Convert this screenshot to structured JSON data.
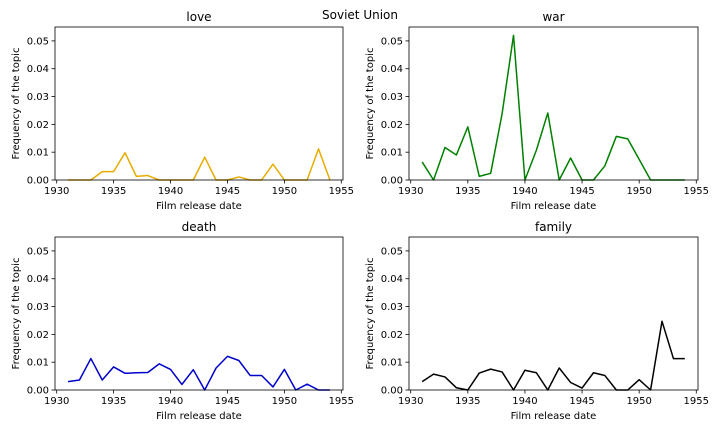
{
  "figure": {
    "suptitle": "Soviet Union"
  },
  "chart_data": [
    {
      "type": "line",
      "title": "love",
      "xlabel": "Film release date",
      "ylabel": "Frequency of the topic",
      "xlim": [
        1929.85,
        1955.15
      ],
      "ylim": [
        0,
        0.055
      ],
      "xticks": [
        1930,
        1935,
        1940,
        1945,
        1950,
        1955
      ],
      "yticks": [
        0.0,
        0.01,
        0.02,
        0.03,
        0.04,
        0.05
      ],
      "ytick_labels": [
        "0.00",
        "0.01",
        "0.02",
        "0.03",
        "0.04",
        "0.05"
      ],
      "grid": false,
      "color": "#e6ac00",
      "x": [
        1931,
        1932,
        1933,
        1934,
        1935,
        1936,
        1937,
        1938,
        1939,
        1940,
        1941,
        1942,
        1943,
        1944,
        1945,
        1946,
        1947,
        1948,
        1949,
        1950,
        1951,
        1952,
        1953,
        1954
      ],
      "y": [
        0,
        0,
        0,
        0.003,
        0.003,
        0.0098,
        0.0013,
        0.0016,
        0,
        0,
        0,
        0,
        0.0082,
        0,
        0,
        0.0011,
        0,
        0,
        0.0057,
        0,
        0,
        0,
        0.0112,
        0
      ]
    },
    {
      "type": "line",
      "title": "war",
      "xlabel": "Film release date",
      "ylabel": "Frequency of the topic",
      "xlim": [
        1929.85,
        1955.15
      ],
      "ylim": [
        0,
        0.055
      ],
      "xticks": [
        1930,
        1935,
        1940,
        1945,
        1950,
        1955
      ],
      "yticks": [
        0.0,
        0.01,
        0.02,
        0.03,
        0.04,
        0.05
      ],
      "ytick_labels": [
        "0.00",
        "0.01",
        "0.02",
        "0.03",
        "0.04",
        "0.05"
      ],
      "grid": false,
      "color": "#008000",
      "x": [
        1931,
        1932,
        1933,
        1934,
        1935,
        1936,
        1937,
        1938,
        1939,
        1940,
        1941,
        1942,
        1943,
        1944,
        1945,
        1946,
        1947,
        1948,
        1949,
        1950,
        1951,
        1952,
        1953,
        1954
      ],
      "y": [
        0.0065,
        0,
        0.0117,
        0.009,
        0.0191,
        0.0013,
        0.0024,
        0.0238,
        0.052,
        0,
        0.0107,
        0.0241,
        0,
        0.0079,
        0,
        0,
        0.0051,
        0.0157,
        0.0148,
        0.0074,
        0,
        0,
        0,
        0
      ]
    },
    {
      "type": "line",
      "title": "death",
      "xlabel": "Film release date",
      "ylabel": "Frequency of the topic",
      "xlim": [
        1929.85,
        1955.15
      ],
      "ylim": [
        0,
        0.055
      ],
      "xticks": [
        1930,
        1935,
        1940,
        1945,
        1950,
        1955
      ],
      "yticks": [
        0.0,
        0.01,
        0.02,
        0.03,
        0.04,
        0.05
      ],
      "ytick_labels": [
        "0.00",
        "0.01",
        "0.02",
        "0.03",
        "0.04",
        "0.05"
      ],
      "grid": false,
      "color": "#0000cc",
      "x": [
        1931,
        1932,
        1933,
        1934,
        1935,
        1936,
        1937,
        1938,
        1939,
        1940,
        1941,
        1942,
        1943,
        1944,
        1945,
        1946,
        1947,
        1948,
        1949,
        1950,
        1951,
        1952,
        1953,
        1954
      ],
      "y": [
        0.003,
        0.0036,
        0.0113,
        0.0036,
        0.0083,
        0.006,
        0.0062,
        0.0063,
        0.0094,
        0.0074,
        0.002,
        0.0073,
        0,
        0.0079,
        0.0121,
        0.0106,
        0.0052,
        0.0052,
        0.0011,
        0.0074,
        0,
        0.0021,
        0,
        0
      ]
    },
    {
      "type": "line",
      "title": "family",
      "xlabel": "Film release date",
      "ylabel": "Frequency of the topic",
      "xlim": [
        1929.85,
        1955.15
      ],
      "ylim": [
        0,
        0.055
      ],
      "xticks": [
        1930,
        1935,
        1940,
        1945,
        1950,
        1955
      ],
      "yticks": [
        0.0,
        0.01,
        0.02,
        0.03,
        0.04,
        0.05
      ],
      "ytick_labels": [
        "0.00",
        "0.01",
        "0.02",
        "0.03",
        "0.04",
        "0.05"
      ],
      "grid": false,
      "color": "#000000",
      "x": [
        1931,
        1932,
        1933,
        1934,
        1935,
        1936,
        1937,
        1938,
        1939,
        1940,
        1941,
        1942,
        1943,
        1944,
        1945,
        1946,
        1947,
        1948,
        1949,
        1950,
        1951,
        1952,
        1953,
        1954
      ],
      "y": [
        0.003,
        0.0057,
        0.0047,
        0.0008,
        0,
        0.0061,
        0.0075,
        0.0065,
        0,
        0.0071,
        0.0062,
        0,
        0.0079,
        0.0027,
        0.0007,
        0.0062,
        0.0052,
        0,
        0,
        0.0037,
        0,
        0.0247,
        0.0113,
        0.0113
      ]
    }
  ]
}
